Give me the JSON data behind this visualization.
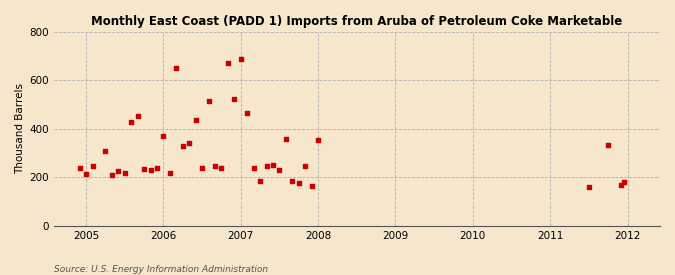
{
  "title": "Monthly East Coast (PADD 1) Imports from Aruba of Petroleum Coke Marketable",
  "ylabel": "Thousand Barrels",
  "source": "Source: U.S. Energy Information Administration",
  "background_color": "#f5e6cc",
  "plot_background_color": "#f5e6cc",
  "marker_color": "#cc0000",
  "marker_size": 12,
  "ylim": [
    0,
    800
  ],
  "yticks": [
    0,
    200,
    400,
    600,
    800
  ],
  "xlim_start": 2004.58,
  "xlim_end": 2012.42,
  "xtick_years": [
    2005,
    2006,
    2007,
    2008,
    2009,
    2010,
    2011,
    2012
  ],
  "data_points": [
    [
      2004.917,
      240
    ],
    [
      2005.0,
      215
    ],
    [
      2005.083,
      245
    ],
    [
      2005.25,
      310
    ],
    [
      2005.333,
      210
    ],
    [
      2005.417,
      225
    ],
    [
      2005.5,
      220
    ],
    [
      2005.583,
      430
    ],
    [
      2005.667,
      455
    ],
    [
      2005.75,
      235
    ],
    [
      2005.833,
      230
    ],
    [
      2005.917,
      240
    ],
    [
      2006.0,
      370
    ],
    [
      2006.083,
      220
    ],
    [
      2006.167,
      650
    ],
    [
      2006.25,
      330
    ],
    [
      2006.333,
      340
    ],
    [
      2006.417,
      435
    ],
    [
      2006.5,
      240
    ],
    [
      2006.583,
      515
    ],
    [
      2006.667,
      245
    ],
    [
      2006.75,
      240
    ],
    [
      2006.833,
      670
    ],
    [
      2006.917,
      525
    ],
    [
      2007.0,
      690
    ],
    [
      2007.083,
      465
    ],
    [
      2007.167,
      240
    ],
    [
      2007.25,
      185
    ],
    [
      2007.333,
      245
    ],
    [
      2007.417,
      250
    ],
    [
      2007.5,
      230
    ],
    [
      2007.583,
      360
    ],
    [
      2007.667,
      185
    ],
    [
      2007.75,
      175
    ],
    [
      2007.833,
      245
    ],
    [
      2007.917,
      165
    ],
    [
      2008.0,
      355
    ],
    [
      2011.5,
      160
    ],
    [
      2011.75,
      335
    ],
    [
      2011.917,
      170
    ],
    [
      2011.958,
      180
    ]
  ]
}
